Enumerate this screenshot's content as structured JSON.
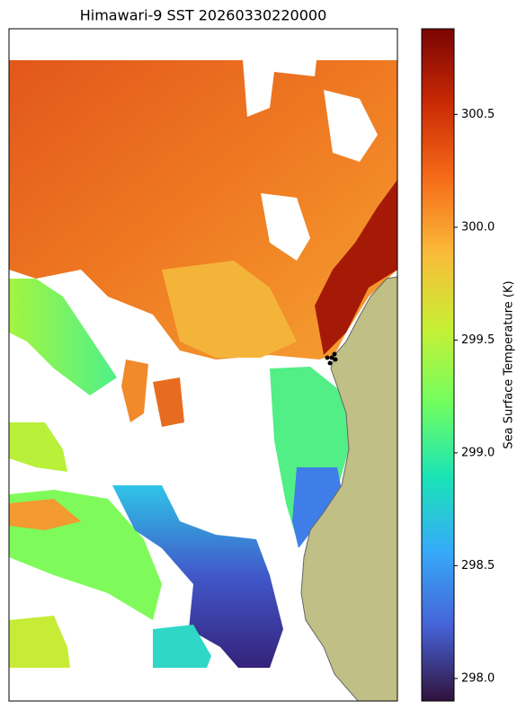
{
  "chart_data": {
    "type": "map",
    "title": "Himawari-9 SST 20260330220000",
    "colorbar": {
      "label": "Sea Surface Temperature (K)",
      "colormap": "turbo",
      "lim": [
        297.9,
        300.88
      ],
      "ticks": [
        {
          "value": 298,
          "label": "298.0"
        },
        298.5,
        {
          "value": 299,
          "label": "299.0"
        },
        299.5,
        {
          "value": 300,
          "label": "300.0"
        },
        300.5
      ]
    }
  }
}
